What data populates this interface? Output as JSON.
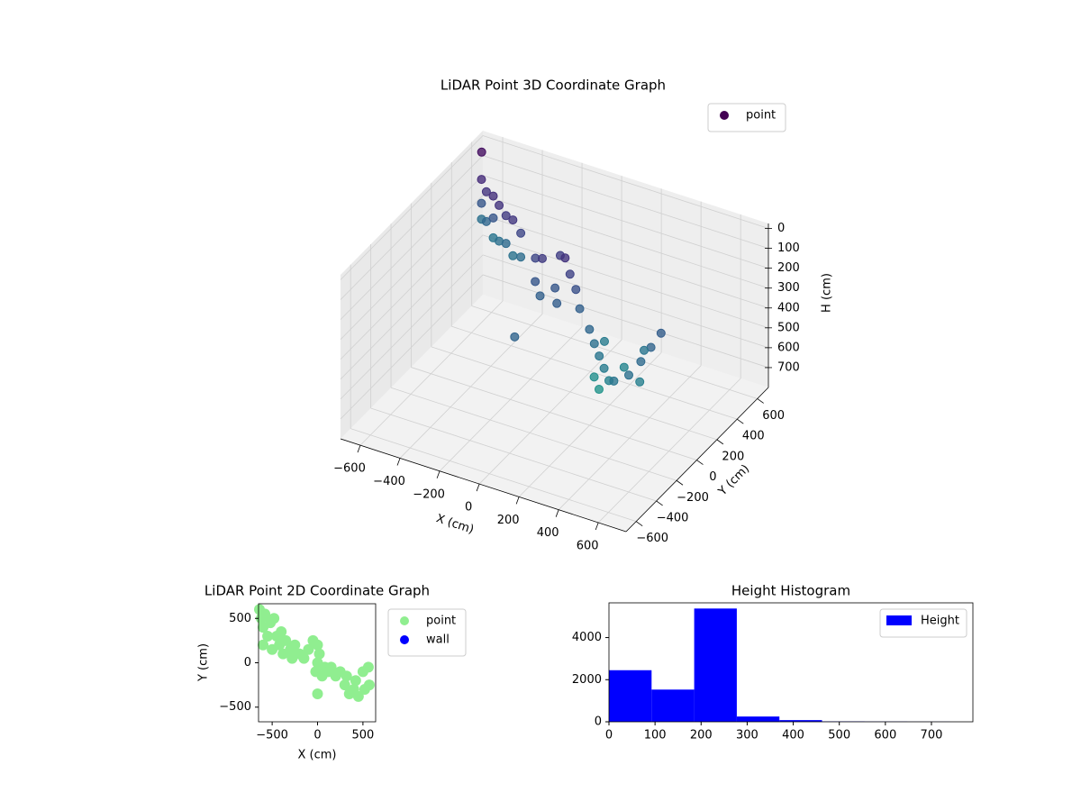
{
  "chart_data": [
    {
      "type": "scatter3d",
      "title": "LiDAR Point 3D Coordinate Graph",
      "xlabel": "X (cm)",
      "ylabel": "Y (cm)",
      "zlabel": "H (cm)",
      "xlim": [
        -700,
        740
      ],
      "ylim": [
        -700,
        710
      ],
      "zlim": [
        -25,
        800
      ],
      "z_inverted": true,
      "xticks": [
        {
          "value": -600,
          "label": "−600"
        },
        {
          "value": -400,
          "label": "−400"
        },
        {
          "value": -200,
          "label": "−200"
        },
        0,
        200,
        400,
        600
      ],
      "yticks": [
        {
          "value": -600,
          "label": "−600"
        },
        {
          "value": -400,
          "label": "−400"
        },
        {
          "value": -200,
          "label": "−200"
        },
        0,
        200,
        400,
        600
      ],
      "zticks": [
        0,
        100,
        200,
        300,
        400,
        500,
        600,
        700
      ],
      "colormap": "viridis",
      "legend": "upper right",
      "grid": true,
      "series": [
        {
          "name": "point",
          "color": "#440154",
          "x": [
            -600,
            -600,
            -600,
            -550,
            -550,
            -500,
            -500,
            -500,
            -450,
            -450,
            -400,
            -400,
            -350,
            -350,
            -300,
            -300,
            -650,
            -150,
            -100,
            -50,
            0,
            50,
            0,
            -50,
            50,
            100,
            -100,
            150,
            0,
            250,
            300,
            350,
            400,
            450,
            500,
            550,
            560,
            560,
            560,
            500,
            450,
            400,
            350,
            580,
            300
          ],
          "y": [
            500,
            500,
            500,
            450,
            450,
            420,
            420,
            420,
            380,
            380,
            350,
            350,
            320,
            320,
            300,
            300,
            600,
            150,
            120,
            200,
            150,
            100,
            50,
            0,
            -30,
            60,
            50,
            0,
            -350,
            -100,
            -150,
            -200,
            -250,
            -300,
            -350,
            -300,
            -200,
            -100,
            0,
            -50,
            -150,
            -300,
            -250,
            -250,
            -50
          ],
          "z": [
            80,
            200,
            280,
            100,
            250,
            90,
            200,
            300,
            100,
            280,
            120,
            260,
            110,
            290,
            150,
            270,
            10,
            150,
            120,
            130,
            100,
            140,
            200,
            230,
            220,
            180,
            200,
            230,
            240,
            250,
            280,
            300,
            320,
            340,
            300,
            280,
            260,
            240,
            220,
            300,
            350,
            400,
            380,
            330,
            320
          ]
        }
      ]
    },
    {
      "type": "scatter",
      "title": "LiDAR Point 2D Coordinate Graph",
      "xlabel": "X (cm)",
      "ylabel": "Y (cm)",
      "xlim": [
        -650,
        640
      ],
      "ylim": [
        -665,
        665
      ],
      "xticks": [
        {
          "value": -500,
          "label": "−500"
        },
        0,
        500
      ],
      "yticks": [
        {
          "value": -500,
          "label": "−500"
        },
        0,
        500
      ],
      "legend": "outside",
      "series": [
        {
          "name": "point",
          "color": "#90ee90",
          "x": [
            -640,
            -620,
            -600,
            -600,
            -580,
            -550,
            -520,
            -500,
            -480,
            -450,
            -420,
            -400,
            -380,
            -350,
            -300,
            -280,
            -250,
            -200,
            -150,
            -100,
            -50,
            0,
            20,
            0,
            -20,
            50,
            80,
            120,
            150,
            200,
            250,
            300,
            320,
            350,
            400,
            420,
            450,
            500,
            520,
            560,
            570,
            0
          ],
          "y": [
            600,
            500,
            400,
            200,
            550,
            300,
            450,
            150,
            500,
            300,
            200,
            350,
            100,
            250,
            150,
            50,
            200,
            100,
            50,
            150,
            250,
            200,
            100,
            0,
            -100,
            -150,
            -50,
            -100,
            -50,
            -150,
            -100,
            -250,
            -150,
            -350,
            -300,
            -200,
            -380,
            -100,
            -300,
            -50,
            -250,
            -350
          ]
        },
        {
          "name": "wall",
          "color": "#0000ff",
          "x": [],
          "y": []
        }
      ]
    },
    {
      "type": "histogram",
      "title": "Height Histogram",
      "xlim": [
        0,
        790
      ],
      "ylim": [
        0,
        5650
      ],
      "xticks": [
        0,
        100,
        200,
        300,
        400,
        500,
        600,
        700
      ],
      "yticks": [
        0,
        2000,
        4000
      ],
      "legend": "upper right",
      "bins": [
        0,
        92.5,
        185,
        277.5,
        370,
        462.5,
        555,
        647.5,
        740
      ],
      "series": [
        {
          "name": "Height",
          "color": "#0000ff",
          "values": [
            2450,
            1530,
            5380,
            250,
            80,
            20,
            10,
            5
          ]
        }
      ]
    }
  ]
}
